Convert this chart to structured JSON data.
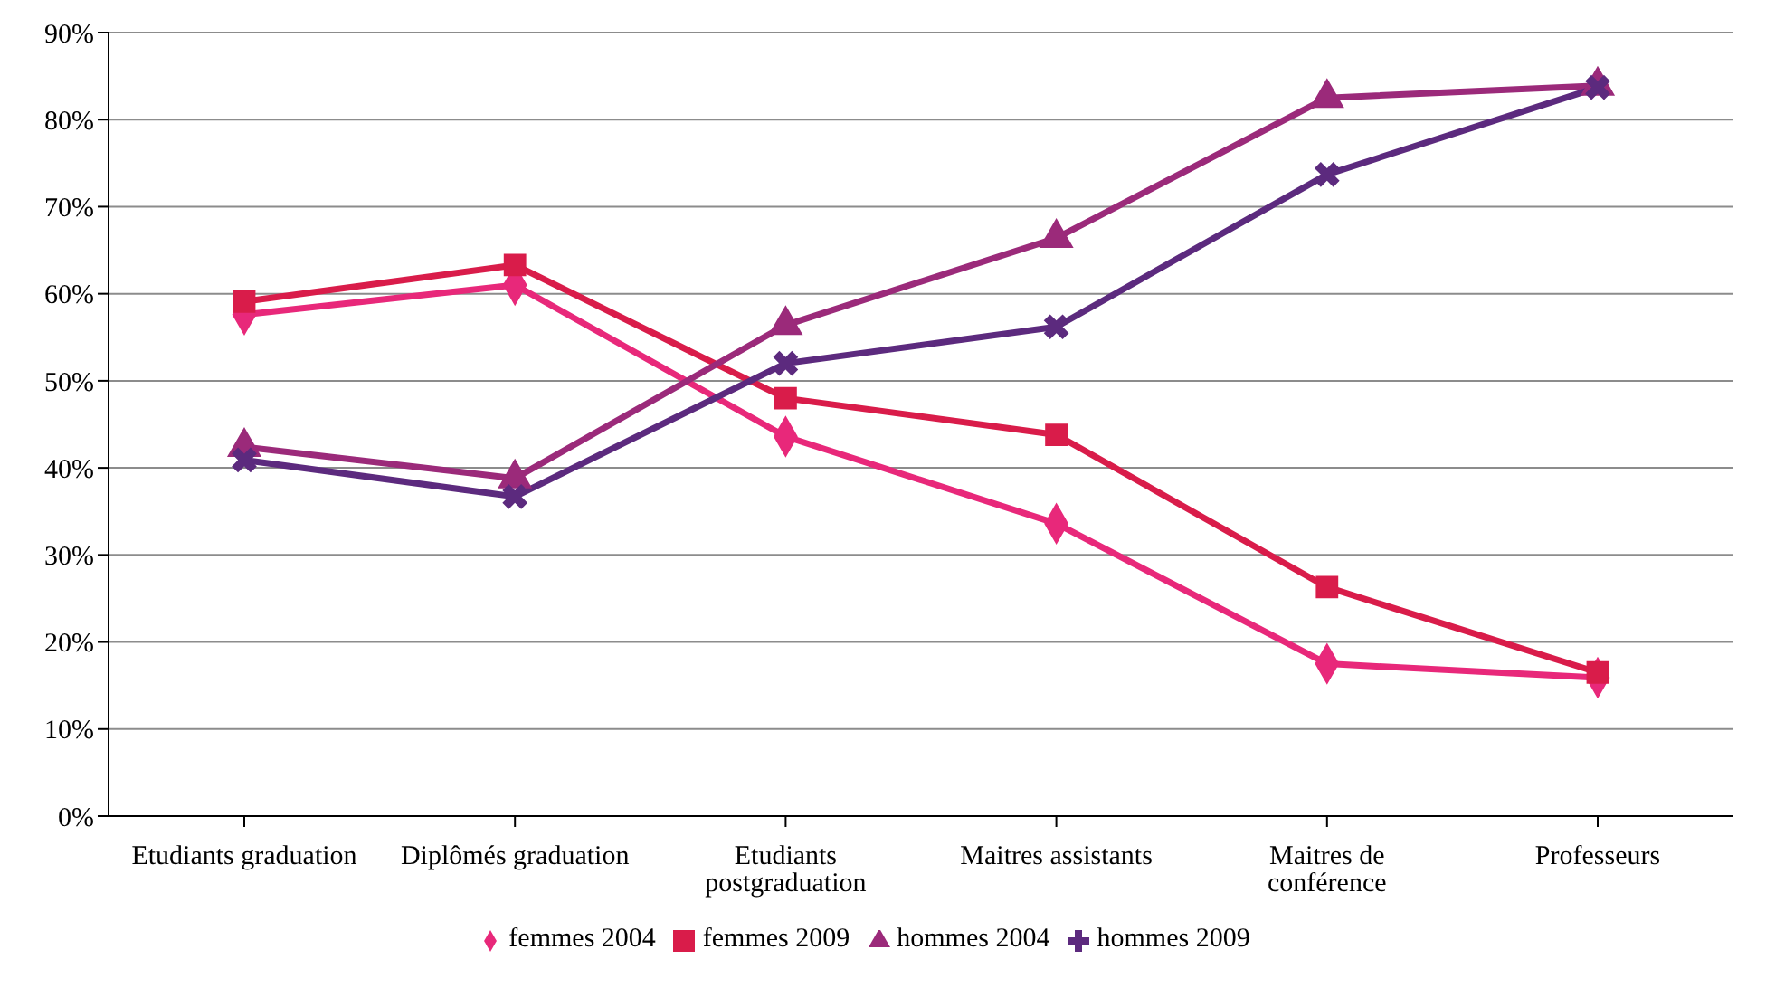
{
  "chart_data": {
    "type": "line",
    "categories": [
      "Etudiants graduation",
      "Diplômés graduation",
      "Etudiants postgraduation",
      "Maitres assistants",
      "Maitres de conférence",
      "Professeurs"
    ],
    "series": [
      {
        "name": "femmes 2004",
        "color": "#e8287a",
        "marker": "diamond",
        "values": [
          57.6,
          61.0,
          43.6,
          33.6,
          17.5,
          15.9
        ]
      },
      {
        "name": "femmes 2009",
        "color": "#d91c4a",
        "marker": "square",
        "values": [
          59.1,
          63.3,
          48.0,
          43.8,
          26.3,
          16.5
        ]
      },
      {
        "name": "hommes 2004",
        "color": "#9b2a7a",
        "marker": "triangle",
        "values": [
          42.4,
          38.8,
          56.4,
          66.4,
          82.5,
          83.9
        ]
      },
      {
        "name": "hommes 2009",
        "color": "#5c2a7e",
        "marker": "cross",
        "values": [
          40.9,
          36.7,
          52.0,
          56.2,
          73.7,
          83.7
        ]
      }
    ],
    "ylim": [
      0,
      90
    ],
    "yticks": [
      {
        "value": 0,
        "label": "0%"
      },
      {
        "value": 10,
        "label": "10%"
      },
      {
        "value": 20,
        "label": "20%"
      },
      {
        "value": 30,
        "label": "30%"
      },
      {
        "value": 40,
        "label": "40%"
      },
      {
        "value": 50,
        "label": "50%"
      },
      {
        "value": 60,
        "label": "60%"
      },
      {
        "value": 70,
        "label": "70%"
      },
      {
        "value": 80,
        "label": "80%"
      },
      {
        "value": 90,
        "label": "90%"
      }
    ],
    "grid": "y",
    "legend": "bottom",
    "line_style": "solid"
  }
}
